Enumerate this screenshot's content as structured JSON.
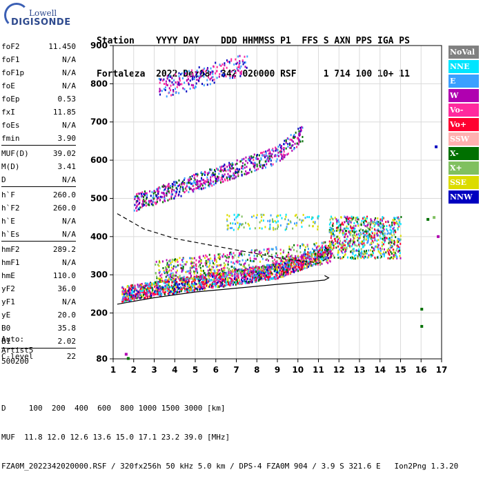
{
  "logo": {
    "line1": "Lowell",
    "line2": "DIGISONDE"
  },
  "header": {
    "labels": "Station    YYYY DAY    DDD HHMMSS P1  FFS S AXN PPS IGA PS",
    "values": "Fortaleza  2022 Dez08  342 020000 RSF     1 714 100 10+ 11"
  },
  "params": [
    {
      "name": "foF2",
      "value": "11.450"
    },
    {
      "name": "foF1",
      "value": "N/A"
    },
    {
      "name": "foF1p",
      "value": "N/A"
    },
    {
      "name": "foE",
      "value": "N/A"
    },
    {
      "name": "foEp",
      "value": "0.53"
    },
    {
      "name": "fxI",
      "value": "11.85"
    },
    {
      "name": "foEs",
      "value": "N/A"
    },
    {
      "name": "fmin",
      "value": "3.90"
    },
    {
      "name": "MUF(D)",
      "value": "39.02"
    },
    {
      "name": "M(D)",
      "value": "3.41"
    },
    {
      "name": "D",
      "value": "N/A"
    },
    {
      "name": "h`F",
      "value": "260.0"
    },
    {
      "name": "h`F2",
      "value": "260.0"
    },
    {
      "name": "h`E",
      "value": "N/A"
    },
    {
      "name": "h`Es",
      "value": "N/A"
    },
    {
      "name": "hmF2",
      "value": "289.2"
    },
    {
      "name": "hmF1",
      "value": "N/A"
    },
    {
      "name": "hmE",
      "value": "110.0"
    },
    {
      "name": "yF2",
      "value": "36.0"
    },
    {
      "name": "yF1",
      "value": "N/A"
    },
    {
      "name": "yE",
      "value": "20.0"
    },
    {
      "name": "B0",
      "value": "35.8"
    },
    {
      "name": "B1",
      "value": "2.02"
    },
    {
      "name": "C-level",
      "value": "22"
    }
  ],
  "auto": {
    "line1": "Auto:",
    "line2": "Artist5",
    "line3": "500200"
  },
  "legend": [
    {
      "label": "NoVal",
      "color": "#808080"
    },
    {
      "label": "NNE",
      "color": "#00e5ff"
    },
    {
      "label": "E",
      "color": "#3aa0ff"
    },
    {
      "label": "W",
      "color": "#b000b0"
    },
    {
      "label": "Vo-",
      "color": "#ff2a9e"
    },
    {
      "label": "Vo+",
      "color": "#ff0030"
    },
    {
      "label": "SSW",
      "color": "#ffb0b0"
    },
    {
      "label": "X-",
      "color": "#007000"
    },
    {
      "label": "X+",
      "color": "#80c060"
    },
    {
      "label": "SSE",
      "color": "#dcdc00"
    },
    {
      "label": "NNW",
      "color": "#0000c0"
    }
  ],
  "footer": {
    "line1": "D     100  200  400  600  800 1000 1500 3000 [km]",
    "line2": "MUF  11.8 12.0 12.6 13.6 15.0 17.1 23.2 39.0 [MHz]",
    "line3": "FZA0M_2022342020000.RSF / 320fx256h 50 kHz 5.0 km / DPS-4 FZA0M 904 / 3.9 S 321.6 E   Ion2Png 1.3.20"
  },
  "chart_data": {
    "type": "scatter",
    "xlim": [
      1,
      17
    ],
    "ylim": [
      80,
      900
    ],
    "xticks": [
      1,
      2,
      3,
      4,
      5,
      6,
      7,
      8,
      9,
      10,
      11,
      12,
      13,
      14,
      15,
      16,
      17
    ],
    "yticks": [
      80,
      200,
      300,
      400,
      500,
      600,
      700,
      800,
      900
    ],
    "grid": true,
    "legend_position": "right",
    "echo_regions": [
      {
        "name": "F2 first-order trace",
        "x_range": [
          1.4,
          11.6
        ],
        "height_range": [
          240,
          400
        ]
      },
      {
        "name": "second-order trace",
        "x_range": [
          2.0,
          10.2
        ],
        "height_range": [
          470,
          690
        ]
      },
      {
        "name": "third-order trace",
        "x_range": [
          3.2,
          7.5
        ],
        "height_range": [
          760,
          900
        ]
      },
      {
        "name": "spread F cluster",
        "x_range": [
          11.5,
          15.0
        ],
        "height_range": [
          320,
          460
        ]
      }
    ],
    "isolated_points": [
      {
        "x": 1.6,
        "y": 92,
        "mode": "W"
      },
      {
        "x": 1.7,
        "y": 81,
        "mode": "X-"
      },
      {
        "x": 16.0,
        "y": 210,
        "mode": "X-"
      },
      {
        "x": 16.0,
        "y": 165,
        "mode": "X-"
      },
      {
        "x": 16.7,
        "y": 635,
        "mode": "NNW"
      },
      {
        "x": 16.3,
        "y": 445,
        "mode": "X-"
      },
      {
        "x": 16.6,
        "y": 450,
        "mode": "X+"
      },
      {
        "x": 16.8,
        "y": 400,
        "mode": "W"
      }
    ],
    "curves": [
      {
        "name": "true height profile",
        "style": "solid",
        "points": [
          [
            1.2,
            223
          ],
          [
            3.0,
            240
          ],
          [
            5.0,
            255
          ],
          [
            7.0,
            265
          ],
          [
            9.0,
            275
          ],
          [
            10.5,
            282
          ],
          [
            11.3,
            286
          ],
          [
            11.5,
            292
          ],
          [
            11.3,
            298
          ]
        ]
      },
      {
        "name": "model trace",
        "style": "dashed",
        "points": [
          [
            1.2,
            460
          ],
          [
            2.5,
            420
          ],
          [
            4.0,
            395
          ],
          [
            6.0,
            375
          ],
          [
            8.0,
            355
          ],
          [
            9.5,
            340
          ],
          [
            10.5,
            335
          ],
          [
            11.0,
            330
          ],
          [
            11.4,
            342
          ],
          [
            11.5,
            360
          ],
          [
            11.3,
            375
          ]
        ]
      }
    ]
  }
}
